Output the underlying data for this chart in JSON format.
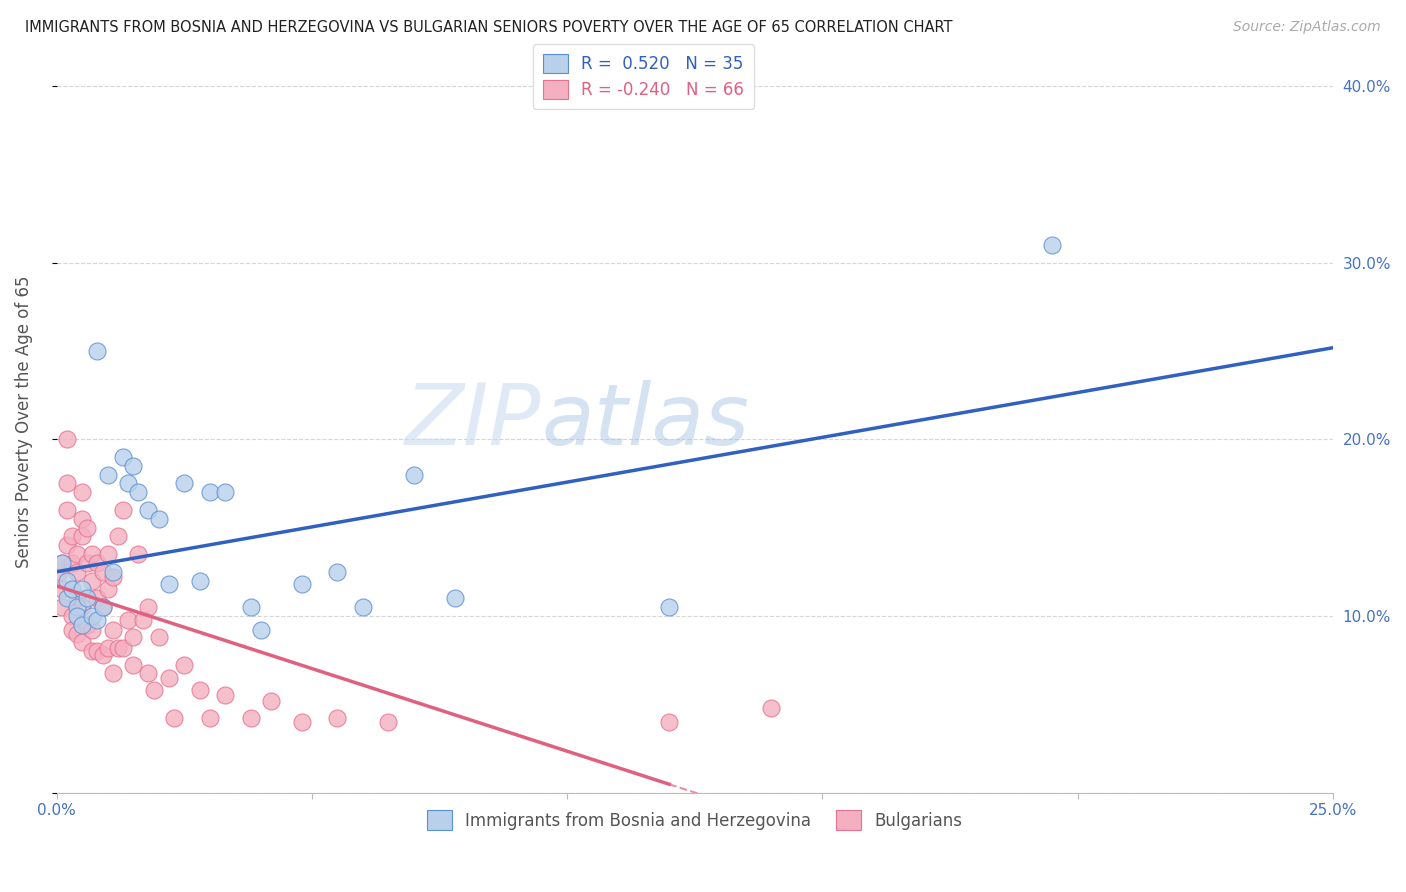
{
  "title": "IMMIGRANTS FROM BOSNIA AND HERZEGOVINA VS BULGARIAN SENIORS POVERTY OVER THE AGE OF 65 CORRELATION CHART",
  "source": "Source: ZipAtlas.com",
  "ylabel": "Seniors Poverty Over the Age of 65",
  "xlim": [
    0.0,
    0.25
  ],
  "ylim": [
    0.0,
    0.42
  ],
  "yticks": [
    0.0,
    0.1,
    0.2,
    0.3,
    0.4
  ],
  "ytick_labels": [
    "",
    "10.0%",
    "20.0%",
    "30.0%",
    "40.0%"
  ],
  "xticks": [
    0.0,
    0.05,
    0.1,
    0.15,
    0.2,
    0.25
  ],
  "xtick_labels": [
    "0.0%",
    "",
    "",
    "",
    "",
    "25.0%"
  ],
  "watermark_zip": "ZIP",
  "watermark_atlas": "atlas",
  "bosnia_R": 0.52,
  "bosnia_N": 35,
  "bulgarian_R": -0.24,
  "bulgarian_N": 66,
  "bosnia_color": "#b8d0ea",
  "bulgarian_color": "#f4afc0",
  "bosnia_edge_color": "#5b8fd4",
  "bulgarian_edge_color": "#e87090",
  "bosnia_line_color": "#3060c0",
  "bulgarian_line_color": "#e06080",
  "bosnia_scatter_x": [
    0.001,
    0.002,
    0.002,
    0.003,
    0.004,
    0.004,
    0.005,
    0.005,
    0.006,
    0.007,
    0.008,
    0.008,
    0.009,
    0.01,
    0.011,
    0.013,
    0.014,
    0.015,
    0.016,
    0.018,
    0.02,
    0.022,
    0.025,
    0.028,
    0.03,
    0.033,
    0.038,
    0.04,
    0.048,
    0.055,
    0.06,
    0.07,
    0.078,
    0.12,
    0.195
  ],
  "bosnia_scatter_y": [
    0.13,
    0.12,
    0.11,
    0.115,
    0.105,
    0.1,
    0.095,
    0.115,
    0.11,
    0.1,
    0.098,
    0.25,
    0.105,
    0.18,
    0.125,
    0.19,
    0.175,
    0.185,
    0.17,
    0.16,
    0.155,
    0.118,
    0.175,
    0.12,
    0.17,
    0.17,
    0.105,
    0.092,
    0.118,
    0.125,
    0.105,
    0.18,
    0.11,
    0.105,
    0.31
  ],
  "bulgarian_scatter_x": [
    0.0005,
    0.001,
    0.001,
    0.001,
    0.002,
    0.002,
    0.002,
    0.002,
    0.003,
    0.003,
    0.003,
    0.003,
    0.004,
    0.004,
    0.004,
    0.004,
    0.005,
    0.005,
    0.005,
    0.005,
    0.005,
    0.006,
    0.006,
    0.006,
    0.007,
    0.007,
    0.007,
    0.007,
    0.008,
    0.008,
    0.008,
    0.009,
    0.009,
    0.009,
    0.01,
    0.01,
    0.01,
    0.011,
    0.011,
    0.011,
    0.012,
    0.012,
    0.013,
    0.013,
    0.014,
    0.015,
    0.015,
    0.016,
    0.017,
    0.018,
    0.018,
    0.019,
    0.02,
    0.022,
    0.023,
    0.025,
    0.028,
    0.03,
    0.033,
    0.038,
    0.042,
    0.048,
    0.055,
    0.065,
    0.12,
    0.14
  ],
  "bulgarian_scatter_y": [
    0.125,
    0.13,
    0.115,
    0.105,
    0.175,
    0.16,
    0.2,
    0.14,
    0.145,
    0.13,
    0.1,
    0.092,
    0.135,
    0.125,
    0.11,
    0.09,
    0.17,
    0.155,
    0.145,
    0.105,
    0.085,
    0.15,
    0.13,
    0.095,
    0.135,
    0.12,
    0.092,
    0.08,
    0.13,
    0.11,
    0.08,
    0.125,
    0.105,
    0.078,
    0.135,
    0.115,
    0.082,
    0.122,
    0.092,
    0.068,
    0.145,
    0.082,
    0.16,
    0.082,
    0.098,
    0.088,
    0.072,
    0.135,
    0.098,
    0.105,
    0.068,
    0.058,
    0.088,
    0.065,
    0.042,
    0.072,
    0.058,
    0.042,
    0.055,
    0.042,
    0.052,
    0.04,
    0.042,
    0.04,
    0.04,
    0.048
  ],
  "background_color": "#ffffff",
  "grid_color": "#cccccc",
  "title_color": "#222222",
  "axis_label_color": "#555555",
  "tick_color": "#4472c4"
}
